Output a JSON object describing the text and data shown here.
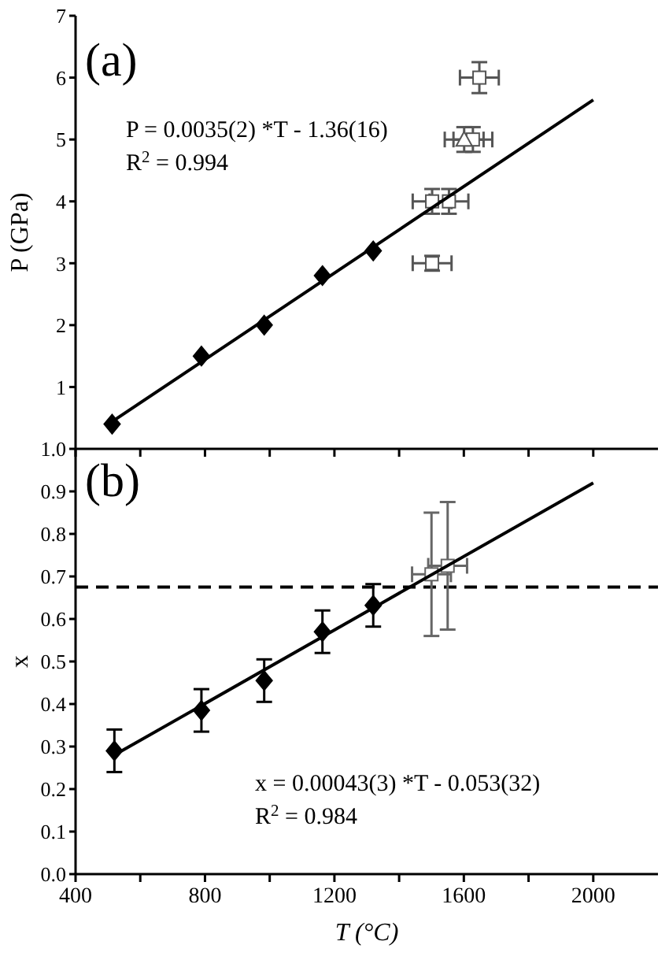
{
  "chart_data": [
    {
      "type": "scatter",
      "title": "(a)",
      "ylabel": "P (GPa)",
      "xlim": [
        400,
        2200
      ],
      "xticks": [
        400,
        {
          "value": 600,
          "label": null
        },
        800,
        {
          "value": 1000,
          "label": null
        },
        1200,
        {
          "value": 1400,
          "label": null
        },
        1600,
        {
          "value": 1800,
          "label": null
        },
        2000
      ],
      "ylim": [
        0,
        7
      ],
      "yticks": [
        1,
        2,
        3,
        4,
        5,
        6,
        7
      ],
      "tick_labels": "y",
      "grid": false,
      "legend": false,
      "annotations": [
        "P = 0.0035(2) *T - 1.36(16)",
        "R$^{2}$ = 0.994"
      ],
      "series": [
        {
          "type": "scatter",
          "marker": "diamond",
          "color": "#000000",
          "x": [
            513,
            789,
            983,
            1163,
            1320
          ],
          "values": [
            0.4,
            1.5,
            2.0,
            2.8,
            3.2
          ]
        },
        {
          "type": "scatter",
          "marker": "square",
          "color": "#555555",
          "x": [
            1502,
            1502,
            1554,
            1628,
            1648
          ],
          "values": [
            3.0,
            4.0,
            4.0,
            5.0,
            6.0
          ],
          "errors": [
            0.12,
            0.2,
            0.2,
            0.2,
            0.25
          ],
          "xerrors": [
            60,
            60,
            60,
            60,
            60
          ]
        },
        {
          "type": "scatter",
          "marker": "triangle",
          "color": "#555555",
          "x": [
            1601
          ],
          "values": [
            5.0
          ],
          "errors": [
            0.2
          ],
          "xerrors": [
            60
          ]
        },
        {
          "type": "line",
          "color": "#000000",
          "x": [
            513,
            2000
          ],
          "values": [
            0.44,
            5.64
          ]
        }
      ]
    },
    {
      "type": "scatter",
      "title": "(b)",
      "xlabel": "T (°C)",
      "ylabel": "x",
      "xlim": [
        400,
        2200
      ],
      "xticks": [
        400,
        {
          "value": 600,
          "label": null
        },
        800,
        {
          "value": 1000,
          "label": null
        },
        1200,
        {
          "value": 1400,
          "label": null
        },
        1600,
        {
          "value": 1800,
          "label": null
        },
        2000
      ],
      "ylim": [
        0,
        1
      ],
      "yticks": [
        {
          "value": 0,
          "label": "0.0"
        },
        0.1,
        0.2,
        0.3,
        0.4,
        0.5,
        0.6,
        0.7,
        0.8,
        0.9,
        {
          "value": 1,
          "label": "1.0"
        }
      ],
      "grid": false,
      "legend": false,
      "annotations": [
        "x = 0.00043(3) *T - 0.053(32)",
        "R$^{2}$ = 0.984"
      ],
      "ref_lines": [
        {
          "axis": "y",
          "value": 0.675,
          "color": "#000000",
          "line_style": "dashed"
        }
      ],
      "series": [
        {
          "type": "scatter",
          "marker": "diamond",
          "color": "#000000",
          "x": [
            520,
            789,
            983,
            1163,
            1320
          ],
          "values": [
            0.29,
            0.385,
            0.455,
            0.57,
            0.632
          ],
          "errors": [
            0.05,
            0.05,
            0.05,
            0.05,
            0.05
          ]
        },
        {
          "type": "scatter",
          "marker": "square",
          "color": "#666666",
          "x": [
            1500,
            1550
          ],
          "values": [
            0.705,
            0.725
          ],
          "errors": [
            0.145,
            0.15
          ],
          "xerrors": [
            60,
            60
          ]
        },
        {
          "type": "line",
          "color": "#000000",
          "x": [
            520,
            2000
          ],
          "values": [
            0.28,
            0.92
          ]
        }
      ]
    }
  ]
}
